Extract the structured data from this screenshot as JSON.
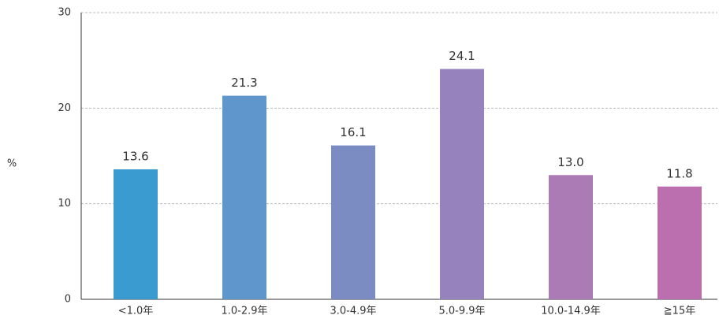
{
  "chart_data": {
    "type": "bar",
    "ylabel": "%",
    "categories": [
      "<1.0年",
      "1.0-2.9年",
      "3.0-4.9年",
      "5.0-9.9年",
      "10.0-14.9年",
      "≧15年"
    ],
    "values": [
      13.6,
      21.3,
      16.1,
      24.1,
      13.0,
      11.8
    ],
    "value_labels": [
      "13.6",
      "21.3",
      "16.1",
      "24.1",
      "13.0",
      "11.8"
    ],
    "colors": [
      "#3a9bd1",
      "#5f96cb",
      "#7b8cc2",
      "#9683bd",
      "#ab7bb5",
      "#bb6fae"
    ],
    "ylim": [
      0,
      30
    ],
    "yticks": [
      0,
      10,
      20,
      30
    ],
    "grid": true
  }
}
